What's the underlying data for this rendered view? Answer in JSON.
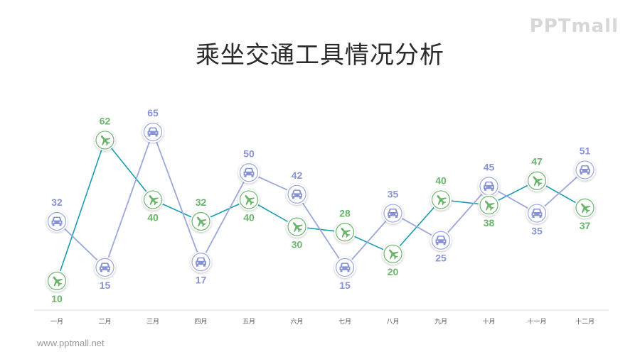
{
  "title": "乘坐交通工具情况分析",
  "logo": "PPTmall",
  "footer": "www.pptmall.net",
  "colors": {
    "plane": "#1a9cb0",
    "plane_label": "#6ab46c",
    "plane_icon": "#6ab46c",
    "car": "#9aa6dc",
    "car_label": "#8893d3",
    "car_icon": "#8893d3",
    "axis": "#dddddd"
  },
  "chart_data": {
    "type": "line",
    "categories": [
      "一月",
      "二月",
      "三月",
      "四月",
      "五月",
      "六月",
      "七月",
      "八月",
      "九月",
      "十月",
      "十一月",
      "十二月"
    ],
    "series": [
      {
        "key": "plane",
        "icon": "airplane-icon",
        "values": [
          10,
          62,
          40,
          32,
          40,
          30,
          28,
          20,
          40,
          38,
          47,
          37
        ]
      },
      {
        "key": "car",
        "icon": "car-icon",
        "values": [
          32,
          15,
          65,
          17,
          50,
          42,
          15,
          35,
          25,
          45,
          35,
          51
        ]
      }
    ],
    "ylim": [
      10,
      65
    ],
    "grid": false
  }
}
